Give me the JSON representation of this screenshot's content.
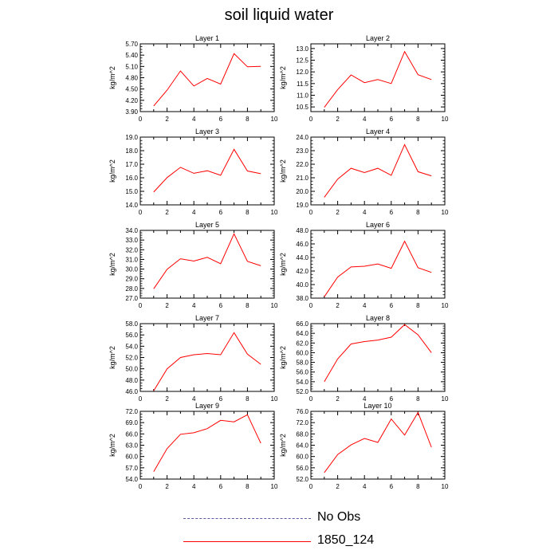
{
  "title": "soil liquid water",
  "legend": {
    "entries": [
      {
        "label": "No Obs",
        "style": "dashed",
        "color": "#5a5aa0"
      },
      {
        "label": "1850_124",
        "style": "solid",
        "color": "#ff0000"
      }
    ]
  },
  "chart_data": [
    {
      "type": "line",
      "title": "Layer 1",
      "xlabel": "",
      "ylabel": "kg/m^2",
      "xlim": [
        0,
        10
      ],
      "ylim": [
        3.9,
        5.7
      ],
      "xticks": [
        "0",
        "2",
        "4",
        "6",
        "8",
        "10"
      ],
      "yticks": [
        "3.90",
        "4.20",
        "4.50",
        "4.80",
        "5.10",
        "5.40",
        "5.70"
      ],
      "series": [
        {
          "name": "1850_124",
          "color": "#ff0000",
          "x": [
            1,
            2,
            3,
            4,
            5,
            6,
            7,
            8,
            9
          ],
          "values": [
            4.05,
            4.47,
            4.98,
            4.58,
            4.78,
            4.63,
            5.44,
            5.09,
            5.1
          ]
        }
      ]
    },
    {
      "type": "line",
      "title": "Layer 2",
      "xlabel": "",
      "ylabel": "kg/m^2",
      "xlim": [
        0,
        10
      ],
      "ylim": [
        10.3,
        13.2
      ],
      "xticks": [
        "0",
        "2",
        "4",
        "6",
        "8",
        "10"
      ],
      "yticks": [
        "10.5",
        "11.0",
        "11.5",
        "12.0",
        "12.5",
        "13.0"
      ],
      "series": [
        {
          "name": "1850_124",
          "color": "#ff0000",
          "x": [
            1,
            2,
            3,
            4,
            5,
            6,
            7,
            8,
            9
          ],
          "values": [
            10.48,
            11.24,
            11.87,
            11.54,
            11.67,
            11.5,
            12.87,
            11.88,
            11.67
          ]
        }
      ]
    },
    {
      "type": "line",
      "title": "Layer 3",
      "xlabel": "",
      "ylabel": "kg/m^2",
      "xlim": [
        0,
        10
      ],
      "ylim": [
        14.0,
        19.0
      ],
      "xticks": [
        "0",
        "2",
        "4",
        "6",
        "8",
        "10"
      ],
      "yticks": [
        "14.0",
        "15.0",
        "16.0",
        "17.0",
        "18.0",
        "19.0"
      ],
      "series": [
        {
          "name": "1850_124",
          "color": "#ff0000",
          "x": [
            1,
            2,
            3,
            4,
            5,
            6,
            7,
            8,
            9
          ],
          "values": [
            14.95,
            16.01,
            16.77,
            16.33,
            16.52,
            16.18,
            18.1,
            16.5,
            16.3
          ]
        }
      ]
    },
    {
      "type": "line",
      "title": "Layer 4",
      "xlabel": "",
      "ylabel": "kg/m^2",
      "xlim": [
        0,
        10
      ],
      "ylim": [
        19.0,
        24.0
      ],
      "xticks": [
        "0",
        "2",
        "4",
        "6",
        "8",
        "10"
      ],
      "yticks": [
        "19.0",
        "20.0",
        "21.0",
        "22.0",
        "23.0",
        "24.0"
      ],
      "series": [
        {
          "name": "1850_124",
          "color": "#ff0000",
          "x": [
            1,
            2,
            3,
            4,
            5,
            6,
            7,
            8,
            9
          ],
          "values": [
            19.55,
            20.9,
            21.7,
            21.38,
            21.7,
            21.18,
            23.45,
            21.45,
            21.14
          ]
        }
      ]
    },
    {
      "type": "line",
      "title": "Layer 5",
      "xlabel": "",
      "ylabel": "kg/m^2",
      "xlim": [
        0,
        10
      ],
      "ylim": [
        27.0,
        34.0
      ],
      "xticks": [
        "0",
        "2",
        "4",
        "6",
        "8",
        "10"
      ],
      "yticks": [
        "27.0",
        "28.0",
        "29.0",
        "30.0",
        "31.0",
        "32.0",
        "33.0",
        "34.0"
      ],
      "series": [
        {
          "name": "1850_124",
          "color": "#ff0000",
          "x": [
            1,
            2,
            3,
            4,
            5,
            6,
            7,
            8,
            9
          ],
          "values": [
            27.96,
            29.97,
            31.07,
            30.83,
            31.22,
            30.56,
            33.65,
            30.8,
            30.34
          ]
        }
      ]
    },
    {
      "type": "line",
      "title": "Layer 6",
      "xlabel": "",
      "ylabel": "kg/m^2",
      "xlim": [
        0,
        10
      ],
      "ylim": [
        38.0,
        48.0
      ],
      "xticks": [
        "0",
        "2",
        "4",
        "6",
        "8",
        "10"
      ],
      "yticks": [
        "38.0",
        "40.0",
        "42.0",
        "44.0",
        "46.0",
        "48.0"
      ],
      "series": [
        {
          "name": "1850_124",
          "color": "#ff0000",
          "x": [
            1,
            2,
            3,
            4,
            5,
            6,
            7,
            8,
            9
          ],
          "values": [
            38.2,
            41.1,
            42.6,
            42.7,
            43.05,
            42.4,
            46.4,
            42.5,
            41.8
          ]
        }
      ]
    },
    {
      "type": "line",
      "title": "Layer 7",
      "xlabel": "",
      "ylabel": "kg/m^2",
      "xlim": [
        0,
        10
      ],
      "ylim": [
        46.0,
        58.0
      ],
      "xticks": [
        "0",
        "2",
        "4",
        "6",
        "8",
        "10"
      ],
      "yticks": [
        "46.0",
        "48.0",
        "50.0",
        "52.0",
        "54.0",
        "56.0",
        "58.0"
      ],
      "series": [
        {
          "name": "1850_124",
          "color": "#ff0000",
          "x": [
            1,
            2,
            3,
            4,
            5,
            6,
            7,
            8,
            9
          ],
          "values": [
            46.1,
            50.0,
            52.0,
            52.5,
            52.7,
            52.5,
            56.4,
            52.6,
            50.8
          ]
        }
      ]
    },
    {
      "type": "line",
      "title": "Layer 8",
      "xlabel": "",
      "ylabel": "kg/m^2",
      "xlim": [
        0,
        10
      ],
      "ylim": [
        52.0,
        66.0
      ],
      "xticks": [
        "0",
        "2",
        "4",
        "6",
        "8",
        "10"
      ],
      "yticks": [
        "52.0",
        "54.0",
        "56.0",
        "58.0",
        "60.0",
        "62.0",
        "64.0",
        "66.0"
      ],
      "series": [
        {
          "name": "1850_124",
          "color": "#ff0000",
          "x": [
            1,
            2,
            3,
            4,
            5,
            6,
            7,
            8,
            9
          ],
          "values": [
            54.0,
            58.7,
            61.8,
            62.3,
            62.6,
            63.2,
            65.8,
            63.7,
            60.0
          ]
        }
      ]
    },
    {
      "type": "line",
      "title": "Layer 9",
      "xlabel": "",
      "ylabel": "kg/m^2",
      "xlim": [
        0,
        10
      ],
      "ylim": [
        54.0,
        72.0
      ],
      "xticks": [
        "0",
        "2",
        "4",
        "6",
        "8",
        "10"
      ],
      "yticks": [
        "54.0",
        "57.0",
        "60.0",
        "63.0",
        "66.0",
        "69.0",
        "72.0"
      ],
      "series": [
        {
          "name": "1850_124",
          "color": "#ff0000",
          "x": [
            1,
            2,
            3,
            4,
            5,
            6,
            7,
            8,
            9
          ],
          "values": [
            56.0,
            62.1,
            65.9,
            66.3,
            67.4,
            69.6,
            69.2,
            71.1,
            63.5
          ]
        }
      ]
    },
    {
      "type": "line",
      "title": "Layer 10",
      "xlabel": "",
      "ylabel": "kg/m^2",
      "xlim": [
        0,
        10
      ],
      "ylim": [
        52.0,
        76.0
      ],
      "xticks": [
        "0",
        "2",
        "4",
        "6",
        "8",
        "10"
      ],
      "yticks": [
        "52.0",
        "56.0",
        "60.0",
        "64.0",
        "68.0",
        "72.0",
        "76.0"
      ],
      "series": [
        {
          "name": "1850_124",
          "color": "#ff0000",
          "x": [
            1,
            2,
            3,
            4,
            5,
            6,
            7,
            8,
            9
          ],
          "values": [
            54.3,
            60.7,
            64.1,
            66.4,
            65.0,
            73.3,
            67.6,
            75.6,
            63.3
          ]
        }
      ]
    }
  ]
}
